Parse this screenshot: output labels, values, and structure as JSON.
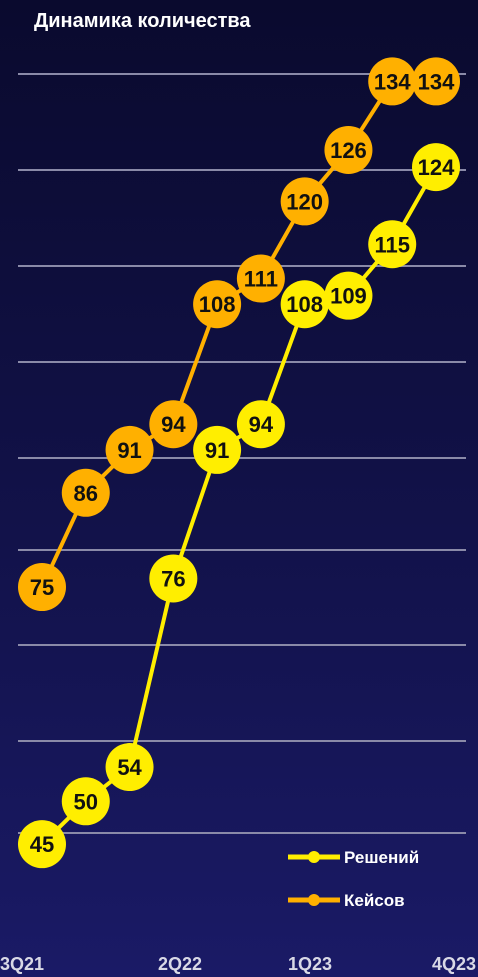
{
  "chart_data": {
    "type": "line",
    "title": "Динамика количества",
    "x_ticks": [
      "3Q21",
      "2Q22",
      "1Q23",
      "4Q23"
    ],
    "ylim": [
      40,
      140
    ],
    "grid": true,
    "legend": "bottom-right",
    "series": [
      {
        "name": "Решений",
        "color": "#ffee00",
        "points": [
          {
            "x": 0,
            "y": 45
          },
          {
            "x": 1,
            "y": 50
          },
          {
            "x": 2,
            "y": 54
          },
          {
            "x": 3,
            "y": 76
          },
          {
            "x": 4,
            "y": 91
          },
          {
            "x": 5,
            "y": 94
          },
          {
            "x": 6,
            "y": 108
          },
          {
            "x": 7,
            "y": 109
          },
          {
            "x": 8,
            "y": 115
          },
          {
            "x": 9,
            "y": 124
          }
        ]
      },
      {
        "name": "Кейсов",
        "color": "#ffb000",
        "points": [
          {
            "x": 0,
            "y": 75
          },
          {
            "x": 1,
            "y": 86
          },
          {
            "x": 2,
            "y": 91
          },
          {
            "x": 3,
            "y": 94
          },
          {
            "x": 4,
            "y": 108
          },
          {
            "x": 5,
            "y": 111
          },
          {
            "x": 6,
            "y": 120
          },
          {
            "x": 7,
            "y": 126
          },
          {
            "x": 8,
            "y": 134
          },
          {
            "x": 9,
            "y": 134
          }
        ]
      }
    ]
  }
}
